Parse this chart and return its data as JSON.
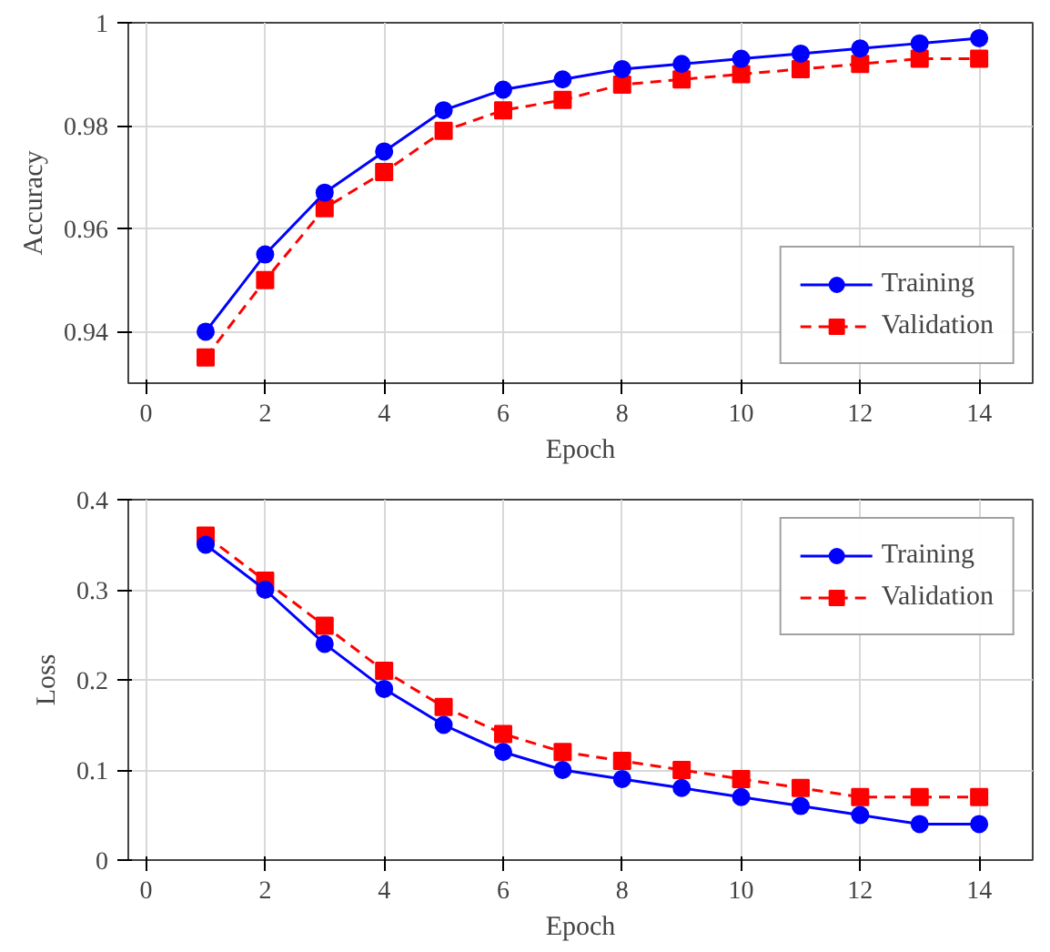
{
  "chart_data": [
    {
      "type": "line",
      "xlabel": "Epoch",
      "ylabel": "Accuracy",
      "xlim": [
        -0.3,
        14.9
      ],
      "xticks": [
        0,
        2,
        4,
        6,
        8,
        10,
        12,
        14
      ],
      "ylim": [
        0.93,
        1.0
      ],
      "yticks": [
        0.94,
        0.96,
        0.98,
        1
      ],
      "grid": true,
      "legend": "bottom right",
      "x": [
        1,
        2,
        3,
        4,
        5,
        6,
        7,
        8,
        9,
        10,
        11,
        12,
        13,
        14
      ],
      "series": [
        {
          "name": "Training",
          "color": "#0000ff",
          "marker": "circle",
          "line_style": "solid",
          "values": [
            0.94,
            0.955,
            0.967,
            0.975,
            0.983,
            0.987,
            0.989,
            0.991,
            0.992,
            0.993,
            0.994,
            0.995,
            0.996,
            0.997
          ]
        },
        {
          "name": "Validation",
          "color": "#ff0000",
          "marker": "square",
          "line_style": "dashed",
          "values": [
            0.935,
            0.95,
            0.964,
            0.971,
            0.979,
            0.983,
            0.985,
            0.988,
            0.989,
            0.99,
            0.991,
            0.992,
            0.993,
            0.993
          ]
        }
      ]
    },
    {
      "type": "line",
      "xlabel": "Epoch",
      "ylabel": "Loss",
      "xlim": [
        -0.3,
        14.9
      ],
      "xticks": [
        0,
        2,
        4,
        6,
        8,
        10,
        12,
        14
      ],
      "ylim": [
        0,
        0.4
      ],
      "yticks": [
        0,
        0.1,
        0.2,
        0.3,
        0.4
      ],
      "grid": true,
      "legend": "top right",
      "x": [
        1,
        2,
        3,
        4,
        5,
        6,
        7,
        8,
        9,
        10,
        11,
        12,
        13,
        14
      ],
      "series": [
        {
          "name": "Training",
          "color": "#0000ff",
          "marker": "circle",
          "line_style": "solid",
          "values": [
            0.35,
            0.3,
            0.24,
            0.19,
            0.15,
            0.12,
            0.1,
            0.09,
            0.08,
            0.07,
            0.06,
            0.05,
            0.04,
            0.04
          ]
        },
        {
          "name": "Validation",
          "color": "#ff0000",
          "marker": "square",
          "line_style": "dashed",
          "values": [
            0.36,
            0.31,
            0.26,
            0.21,
            0.17,
            0.14,
            0.12,
            0.11,
            0.1,
            0.09,
            0.08,
            0.07,
            0.07,
            0.07
          ]
        }
      ]
    }
  ]
}
